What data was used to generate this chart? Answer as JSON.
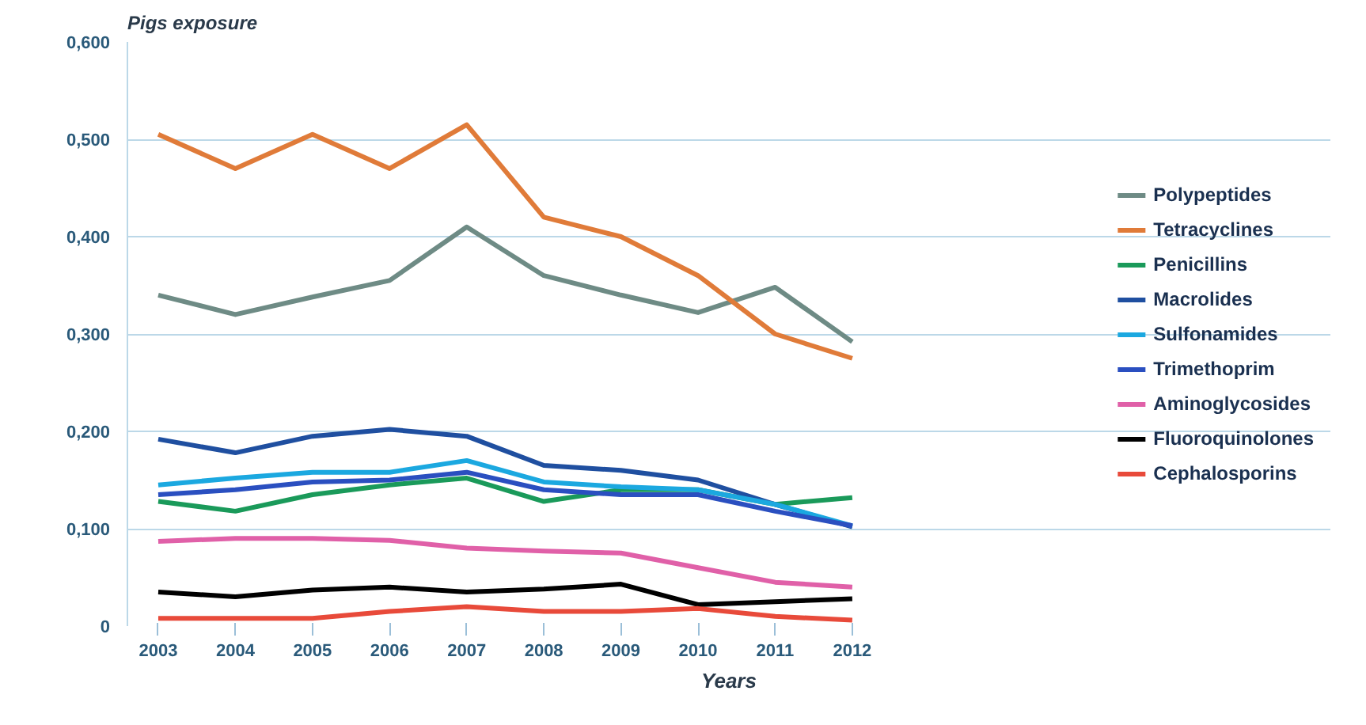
{
  "chart_data": {
    "type": "line",
    "ylabel": "Pigs exposure",
    "xlabel": "Years",
    "categories": [
      "2003",
      "2004",
      "2005",
      "2006",
      "2007",
      "2008",
      "2009",
      "2010",
      "2011",
      "2012"
    ],
    "ylim": [
      0,
      0.6
    ],
    "yticks": [
      0,
      {
        "value": 0.1,
        "label": "0,100"
      },
      {
        "value": 0.2,
        "label": "0,200"
      },
      {
        "value": 0.3,
        "label": "0,300"
      },
      {
        "value": 0.4,
        "label": "0,400"
      },
      {
        "value": 0.5,
        "label": "0,500"
      },
      {
        "value": 0.6,
        "label": "0,600"
      }
    ],
    "grid": "y",
    "legend": "right",
    "marker": "none",
    "line_style": "solid",
    "series": [
      {
        "name": "Polypeptides",
        "color": "#6e8b85",
        "values": [
          0.34,
          0.32,
          0.338,
          0.355,
          0.41,
          0.36,
          0.34,
          0.322,
          0.348,
          0.292
        ]
      },
      {
        "name": "Tetracyclines",
        "color": "#e07b39",
        "values": [
          0.505,
          0.47,
          0.505,
          0.47,
          0.515,
          0.42,
          0.4,
          0.36,
          0.3,
          0.275
        ]
      },
      {
        "name": "Penicillins",
        "color": "#1a9a5a",
        "values": [
          0.128,
          0.118,
          0.135,
          0.145,
          0.152,
          0.128,
          0.14,
          0.14,
          0.125,
          0.132
        ]
      },
      {
        "name": "Macrolides",
        "color": "#1f4fa0",
        "values": [
          0.192,
          0.178,
          0.195,
          0.202,
          0.195,
          0.165,
          0.16,
          0.15,
          0.125,
          0.102
        ]
      },
      {
        "name": "Sulfonamides",
        "color": "#1ba8e0",
        "values": [
          0.145,
          0.152,
          0.158,
          0.158,
          0.17,
          0.148,
          0.143,
          0.14,
          0.125,
          0.103
        ]
      },
      {
        "name": "Trimethoprim",
        "color": "#2a4fc0",
        "values": [
          0.135,
          0.14,
          0.148,
          0.15,
          0.158,
          0.14,
          0.135,
          0.135,
          0.118,
          0.103
        ]
      },
      {
        "name": "Aminoglycosides",
        "color": "#e060a8",
        "values": [
          0.087,
          0.09,
          0.09,
          0.088,
          0.08,
          0.077,
          0.075,
          0.06,
          0.045,
          0.04
        ]
      },
      {
        "name": "Fluoroquinolones",
        "color": "#000000",
        "values": [
          0.035,
          0.03,
          0.037,
          0.04,
          0.035,
          0.038,
          0.043,
          0.022,
          0.025,
          0.028
        ]
      },
      {
        "name": "Cephalosporins",
        "color": "#e84a3a",
        "values": [
          0.008,
          0.008,
          0.008,
          0.015,
          0.02,
          0.015,
          0.015,
          0.018,
          0.01,
          0.006
        ]
      }
    ]
  }
}
